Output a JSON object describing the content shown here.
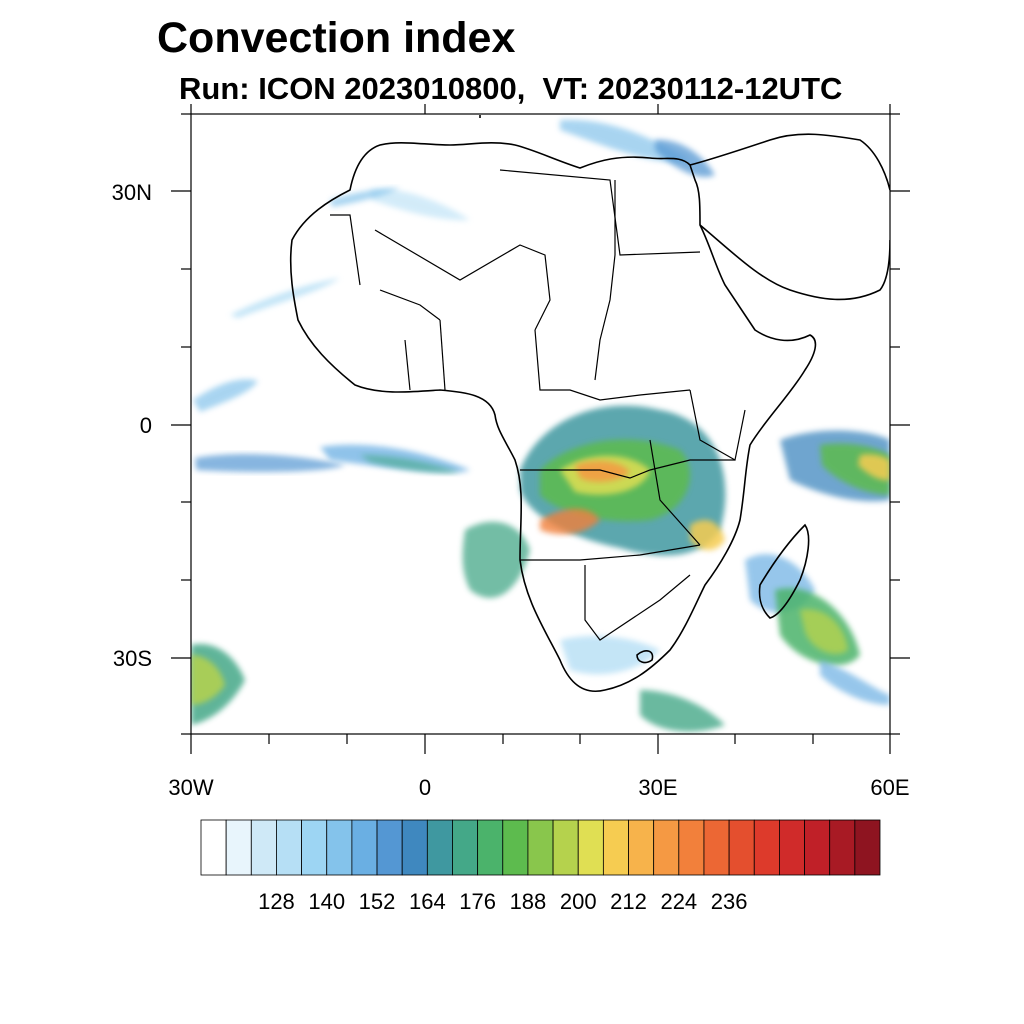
{
  "title": "Convection index",
  "subtitle": "Run: ICON 2023010800,  VT: 20230112-12UTC",
  "map": {
    "region": "Africa",
    "lat_labels": [
      "30N",
      "0",
      "30S"
    ],
    "lon_labels": [
      "30W",
      "0",
      "30E",
      "60E"
    ],
    "lon_range": [
      -30,
      60
    ],
    "lat_range": [
      -40,
      40
    ]
  },
  "colorbar": {
    "colors": [
      "#ffffff",
      "#e8f5fc",
      "#cfe9f7",
      "#b6dff5",
      "#9dd5f3",
      "#84c3eb",
      "#6aafe3",
      "#5497d3",
      "#3f88bf",
      "#3f98a0",
      "#44a888",
      "#4bb36b",
      "#5dbb4e",
      "#89c64c",
      "#b5d24d",
      "#e0df53",
      "#f6cc51",
      "#f7b34b",
      "#f59943",
      "#f2803b",
      "#ec6734",
      "#e44f2e",
      "#dd3a2b",
      "#d02b2a",
      "#c02028",
      "#a81a24",
      "#8e1420"
    ],
    "tick_labels": [
      "128",
      "140",
      "152",
      "164",
      "176",
      "188",
      "200",
      "212",
      "224",
      "236"
    ]
  }
}
